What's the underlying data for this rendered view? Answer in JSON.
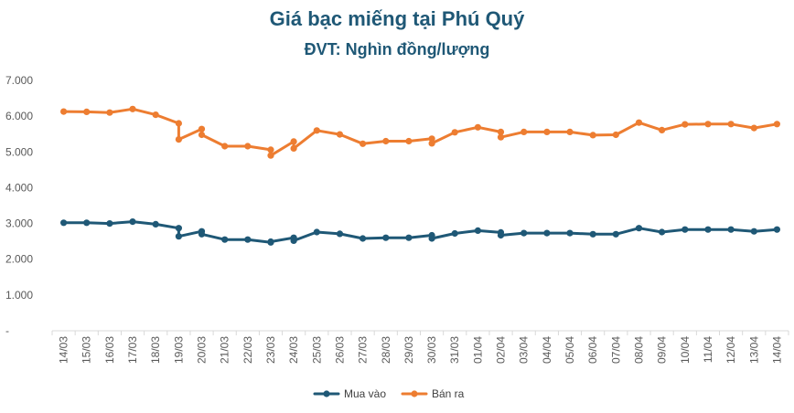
{
  "chart_data": {
    "type": "line",
    "title": "Giá bạc miếng tại Phú Quý",
    "subtitle": "ĐVT: Nghìn đồng/lượng",
    "ylim": [
      0,
      7000
    ],
    "y_ticks": [
      0,
      1000,
      2000,
      3000,
      4000,
      5000,
      6000,
      7000
    ],
    "y_tick_labels": [
      "-",
      "1.000",
      "2.000",
      "3.000",
      "4.000",
      "5.000",
      "6.000",
      "7.000"
    ],
    "x_labels": [
      "14/03",
      "15/03",
      "16/03",
      "17/03",
      "18/03",
      "19/03",
      "20/03",
      "21/03",
      "22/03",
      "23/03",
      "24/03",
      "25/03",
      "26/03",
      "27/03",
      "28/03",
      "29/03",
      "30/03",
      "31/03",
      "01/04",
      "02/04",
      "03/04",
      "04/04",
      "05/04",
      "06/04",
      "07/04",
      "08/04",
      "09/04",
      "10/04",
      "11/04",
      "12/04",
      "13/04",
      "14/04"
    ],
    "grid": false,
    "legend_position": "bottom",
    "series": [
      {
        "name": "Mua vào",
        "color": "#1f5876",
        "points": [
          [
            0,
            3020
          ],
          [
            1,
            3020
          ],
          [
            2,
            3000
          ],
          [
            3,
            3050
          ],
          [
            4,
            2980
          ],
          [
            5,
            2870
          ],
          [
            5,
            2640
          ],
          [
            6,
            2780
          ],
          [
            6,
            2700
          ],
          [
            7,
            2550
          ],
          [
            8,
            2550
          ],
          [
            9,
            2470
          ],
          [
            9,
            2490
          ],
          [
            10,
            2600
          ],
          [
            10,
            2520
          ],
          [
            11,
            2760
          ],
          [
            12,
            2710
          ],
          [
            13,
            2580
          ],
          [
            14,
            2600
          ],
          [
            15,
            2600
          ],
          [
            16,
            2670
          ],
          [
            16,
            2580
          ],
          [
            17,
            2720
          ],
          [
            18,
            2800
          ],
          [
            19,
            2750
          ],
          [
            19,
            2670
          ],
          [
            20,
            2730
          ],
          [
            21,
            2730
          ],
          [
            22,
            2730
          ],
          [
            23,
            2700
          ],
          [
            24,
            2700
          ],
          [
            25,
            2870
          ],
          [
            26,
            2760
          ],
          [
            27,
            2830
          ],
          [
            28,
            2830
          ],
          [
            29,
            2830
          ],
          [
            30,
            2780
          ],
          [
            31,
            2830
          ]
        ]
      },
      {
        "name": "Bán ra",
        "color": "#ed7d31",
        "points": [
          [
            0,
            6130
          ],
          [
            1,
            6120
          ],
          [
            2,
            6100
          ],
          [
            3,
            6200
          ],
          [
            4,
            6040
          ],
          [
            5,
            5800
          ],
          [
            5,
            5350
          ],
          [
            6,
            5640
          ],
          [
            6,
            5480
          ],
          [
            7,
            5160
          ],
          [
            8,
            5160
          ],
          [
            9,
            5060
          ],
          [
            9,
            4900
          ],
          [
            10,
            5290
          ],
          [
            10,
            5100
          ],
          [
            11,
            5600
          ],
          [
            12,
            5490
          ],
          [
            13,
            5230
          ],
          [
            14,
            5300
          ],
          [
            15,
            5300
          ],
          [
            16,
            5370
          ],
          [
            16,
            5240
          ],
          [
            17,
            5550
          ],
          [
            18,
            5690
          ],
          [
            19,
            5560
          ],
          [
            19,
            5410
          ],
          [
            20,
            5560
          ],
          [
            21,
            5560
          ],
          [
            22,
            5560
          ],
          [
            23,
            5470
          ],
          [
            24,
            5480
          ],
          [
            25,
            5820
          ],
          [
            26,
            5610
          ],
          [
            27,
            5770
          ],
          [
            28,
            5780
          ],
          [
            29,
            5780
          ],
          [
            30,
            5670
          ],
          [
            31,
            5780
          ]
        ]
      }
    ]
  }
}
